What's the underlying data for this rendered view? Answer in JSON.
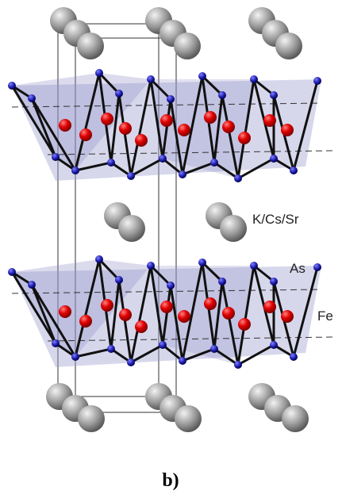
{
  "labels": {
    "cation": "K/Cs/Sr",
    "arsenic": "As",
    "iron": "Fe"
  },
  "caption": "b)"
}
